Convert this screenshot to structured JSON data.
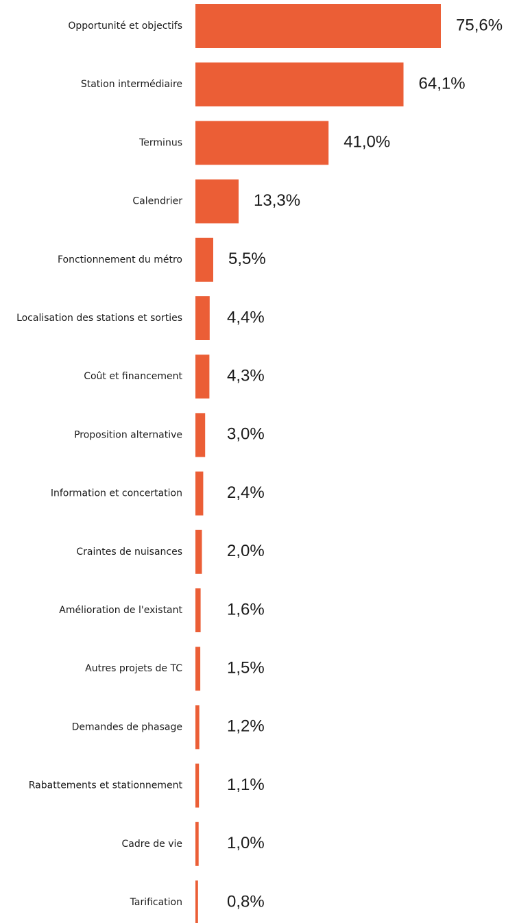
{
  "chart_data": {
    "type": "bar",
    "orientation": "horizontal",
    "categories": [
      "Opportunité et objectifs",
      "Station intermédiaire",
      "Terminus",
      "Calendrier",
      "Fonctionnement du métro",
      "Localisation des stations et sorties",
      "Coût et financement",
      "Proposition alternative",
      "Information et concertation",
      "Craintes de nuisances",
      "Amélioration de l'existant",
      "Autres projets de TC",
      "Demandes de phasage",
      "Rabattements et stationnement",
      "Cadre de vie",
      "Tarification"
    ],
    "values": [
      75.6,
      64.1,
      41.0,
      13.3,
      5.5,
      4.4,
      4.3,
      3.0,
      2.4,
      2.0,
      1.6,
      1.5,
      1.2,
      1.1,
      1.0,
      0.8
    ],
    "value_labels": [
      "75,6%",
      "64,1%",
      "41,0%",
      "13,3%",
      "5,5%",
      "4,4%",
      "4,3%",
      "3,0%",
      "2,4%",
      "2,0%",
      "1,6%",
      "1,5%",
      "1,2%",
      "1,1%",
      "1,0%",
      "0,8%"
    ],
    "unit": "%",
    "xlim": [
      0,
      76
    ],
    "grid": false,
    "legend": "none",
    "colors": {
      "bar": "#EB5E36",
      "text": "#1a1a1a",
      "background": "#ffffff"
    }
  }
}
